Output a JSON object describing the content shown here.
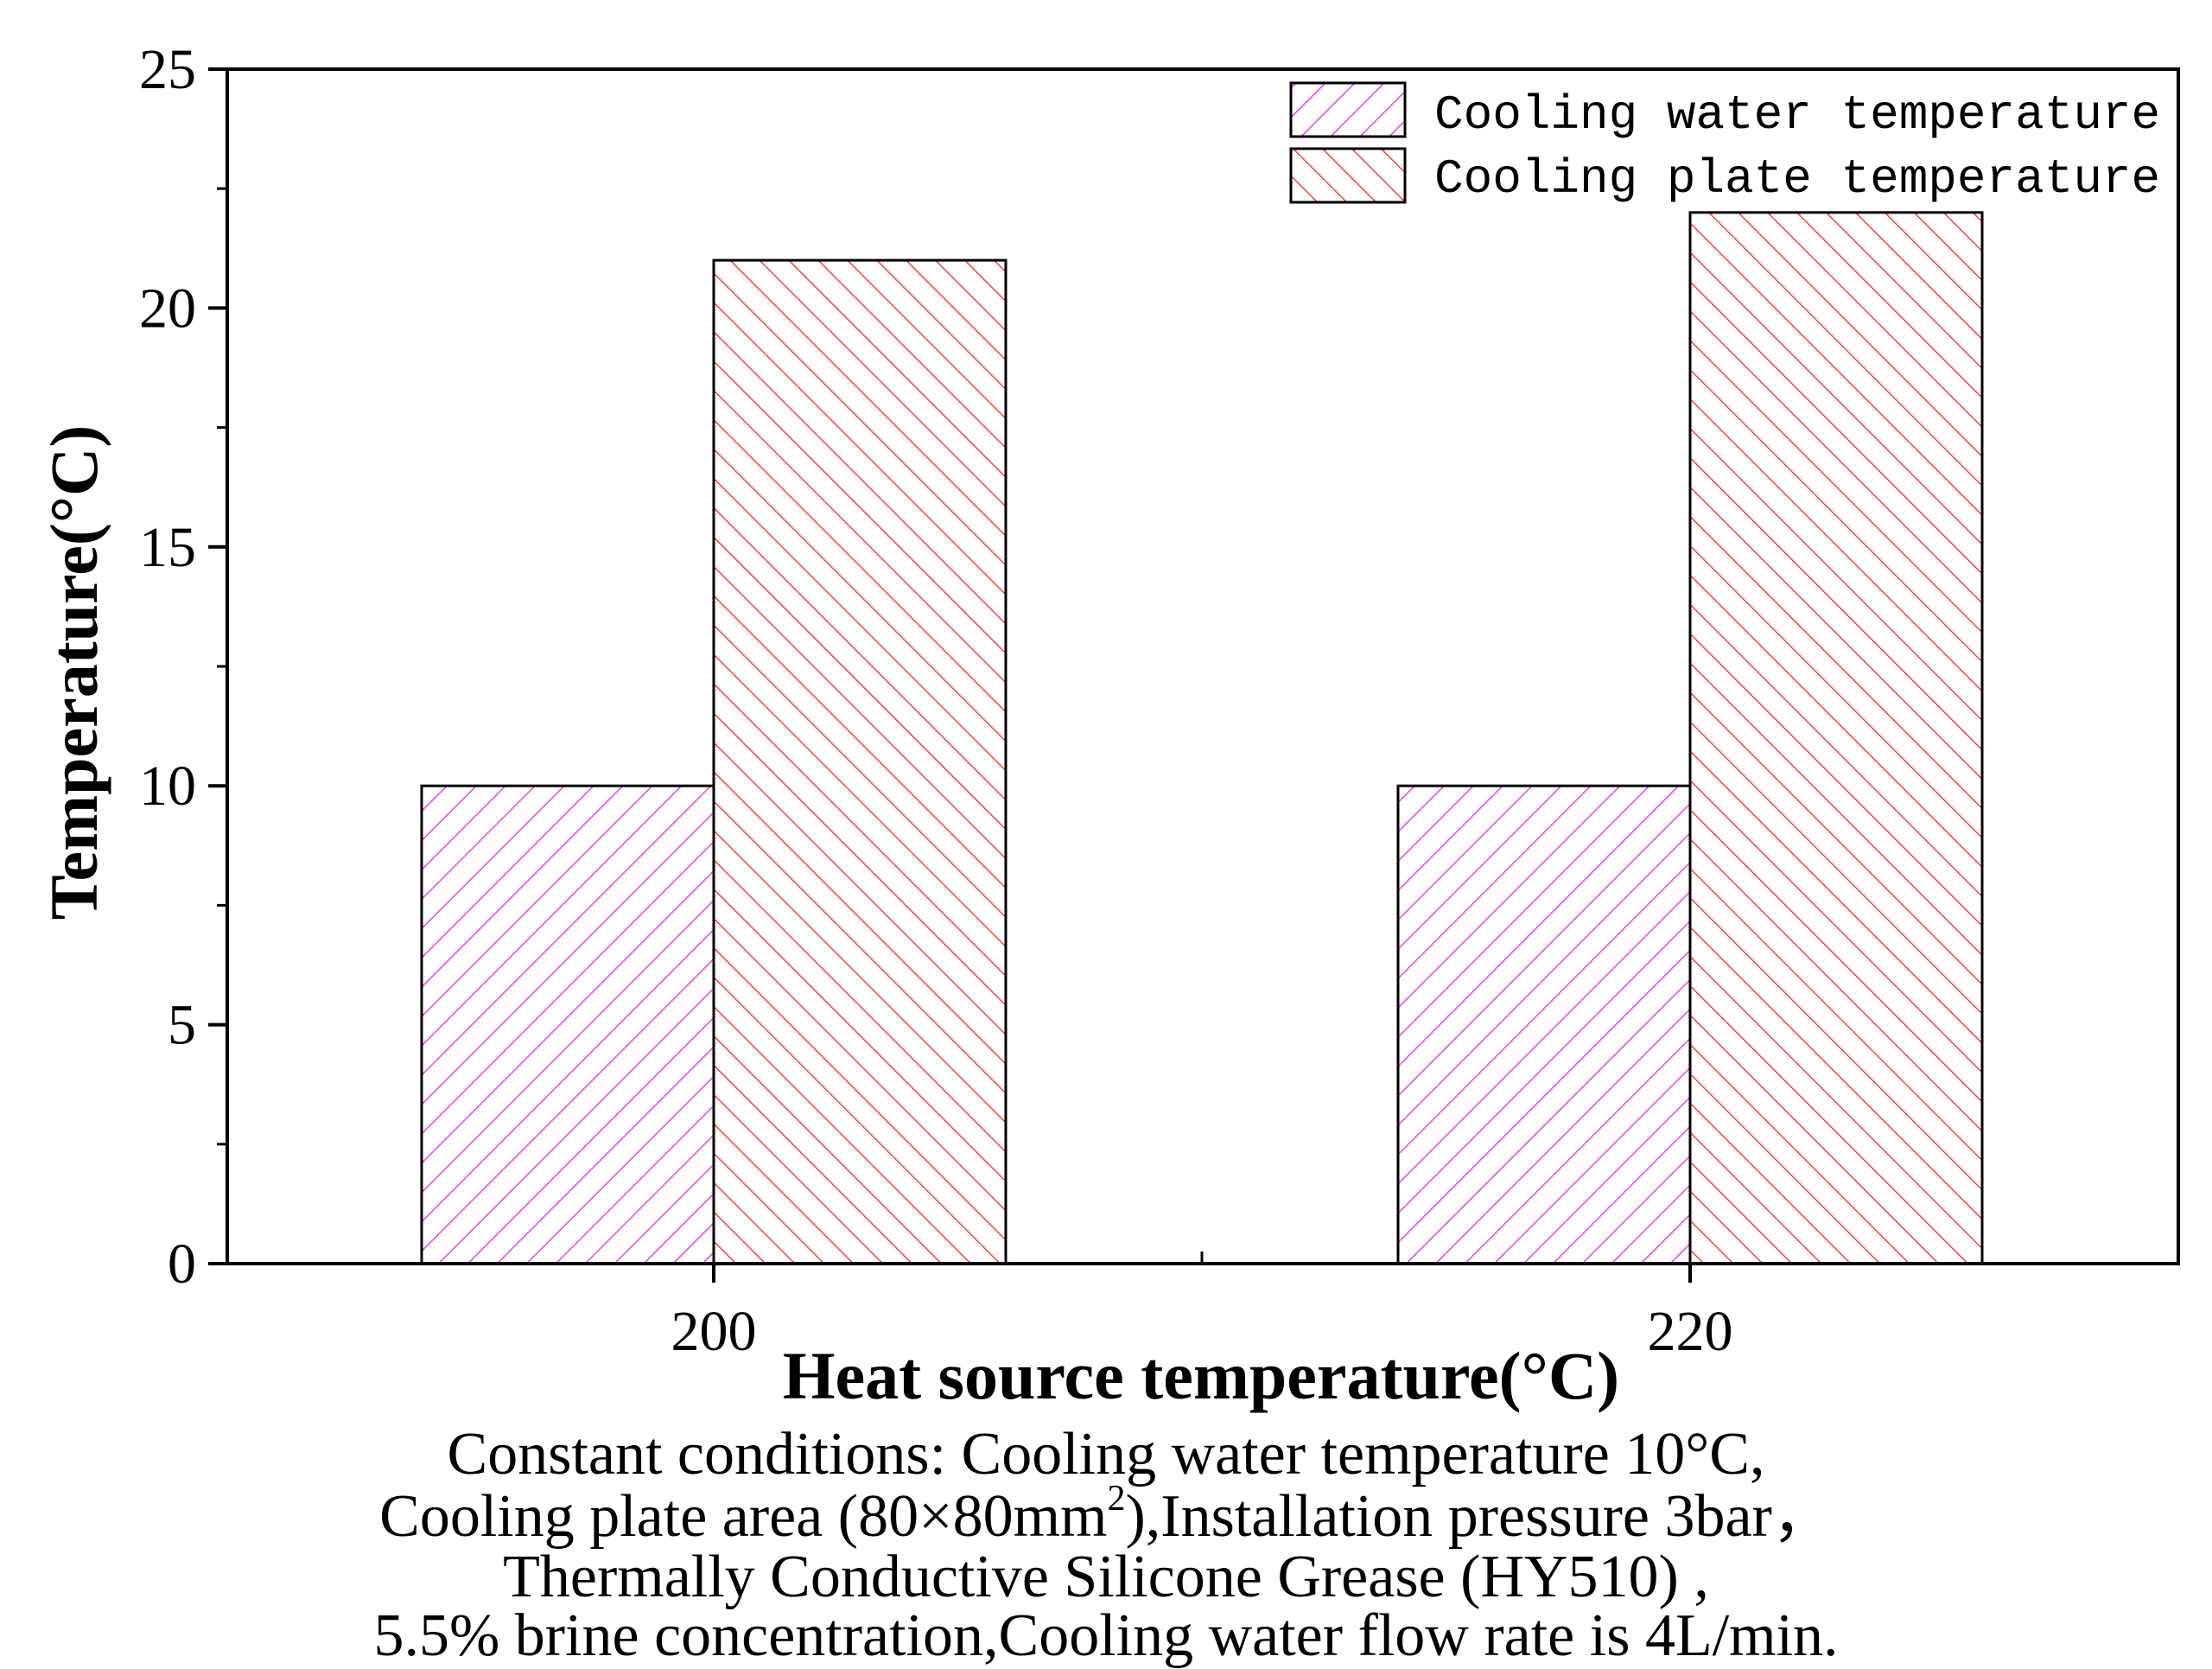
{
  "chart_data": {
    "type": "bar",
    "title": "",
    "xlabel": "Heat source temperature(°C)",
    "ylabel": "Temperature(°C)",
    "categories": [
      "200",
      "220"
    ],
    "series": [
      {
        "name": "Cooling water temperature",
        "values": [
          10,
          10
        ],
        "color": "#e020e0",
        "hatch": "forward-diagonal"
      },
      {
        "name": "Cooling plate temperature",
        "values": [
          21,
          22
        ],
        "color": "#ff1a1a",
        "hatch": "back-diagonal"
      }
    ],
    "ylim": [
      0,
      25
    ],
    "yticks": [
      "0",
      "5",
      "10",
      "15",
      "20",
      "25"
    ],
    "grid": false,
    "legend_position": "top-right"
  },
  "caption": {
    "line1": "Constant conditions: Cooling water temperature 10°C,",
    "line2_prefix": "Cooling plate area (80×80mm",
    "line2_sup": "2",
    "line2_suffix": "),Installation pressure 3bar，",
    "line3": "Thermally Conductive Silicone Grease (HY510) ,",
    "line4": "5.5% brine concentration,Cooling water flow rate is 4L/min."
  }
}
